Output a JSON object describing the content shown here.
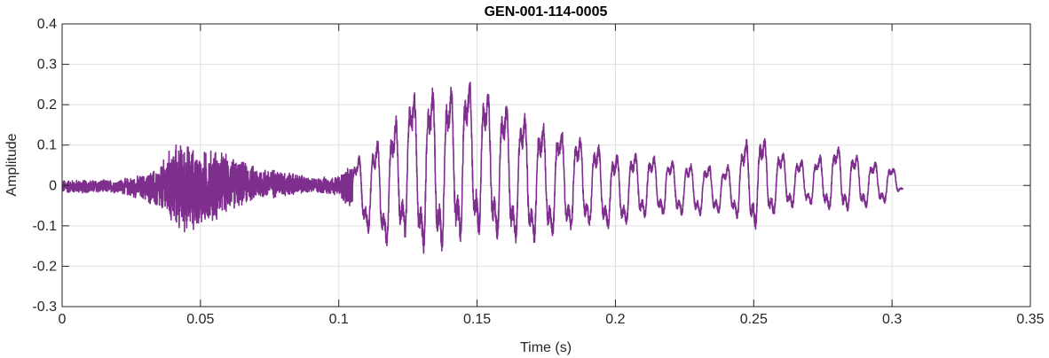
{
  "chart_data": {
    "type": "line",
    "title": "GEN-001-114-0005",
    "xlabel": "Time (s)",
    "ylabel": "Amplitude",
    "xlim": [
      0,
      0.35
    ],
    "ylim": [
      -0.3,
      0.4
    ],
    "xticks": [
      0,
      0.05,
      0.1,
      0.15,
      0.2,
      0.25,
      0.3,
      0.35
    ],
    "xtick_labels": [
      "0",
      "0.05",
      "0.1",
      "0.15",
      "0.2",
      "0.25",
      "0.3",
      "0.35"
    ],
    "yticks": [
      -0.3,
      -0.2,
      -0.1,
      0,
      0.1,
      0.2,
      0.3,
      0.4
    ],
    "ytick_labels": [
      "-0.3",
      "-0.2",
      "-0.1",
      "0",
      "0.1",
      "0.2",
      "0.3",
      "0.4"
    ],
    "grid": true,
    "series": [
      {
        "color": "#7E2F8E",
        "signal_end_time": 0.304,
        "envelope": {
          "t": [
            0,
            0.02,
            0.03,
            0.035,
            0.04,
            0.045,
            0.05,
            0.055,
            0.06,
            0.07,
            0.08,
            0.09,
            0.1,
            0.105,
            0.11,
            0.115,
            0.12,
            0.125,
            0.13,
            0.135,
            0.14,
            0.145,
            0.15,
            0.155,
            0.16,
            0.17,
            0.18,
            0.19,
            0.2,
            0.21,
            0.22,
            0.23,
            0.24,
            0.25,
            0.26,
            0.27,
            0.28,
            0.29,
            0.3,
            0.304
          ],
          "max": [
            0.015,
            0.015,
            0.03,
            0.05,
            0.11,
            0.115,
            0.09,
            0.1,
            0.08,
            0.05,
            0.04,
            0.02,
            0.025,
            0.07,
            0.12,
            0.15,
            0.2,
            0.28,
            0.27,
            0.3,
            0.29,
            0.31,
            0.31,
            0.27,
            0.25,
            0.2,
            0.17,
            0.14,
            0.1,
            0.1,
            0.08,
            0.07,
            0.06,
            0.17,
            0.1,
            0.07,
            0.12,
            0.08,
            0.06,
            0.01
          ],
          "min": [
            -0.02,
            -0.02,
            -0.04,
            -0.07,
            -0.11,
            -0.13,
            -0.11,
            -0.1,
            -0.07,
            -0.04,
            -0.03,
            -0.02,
            -0.025,
            -0.08,
            -0.14,
            -0.17,
            -0.2,
            -0.16,
            -0.21,
            -0.22,
            -0.2,
            -0.18,
            -0.17,
            -0.17,
            -0.18,
            -0.18,
            -0.15,
            -0.13,
            -0.13,
            -0.1,
            -0.09,
            -0.09,
            -0.08,
            -0.14,
            -0.08,
            -0.06,
            -0.09,
            -0.07,
            -0.05,
            -0.01
          ]
        }
      }
    ]
  }
}
